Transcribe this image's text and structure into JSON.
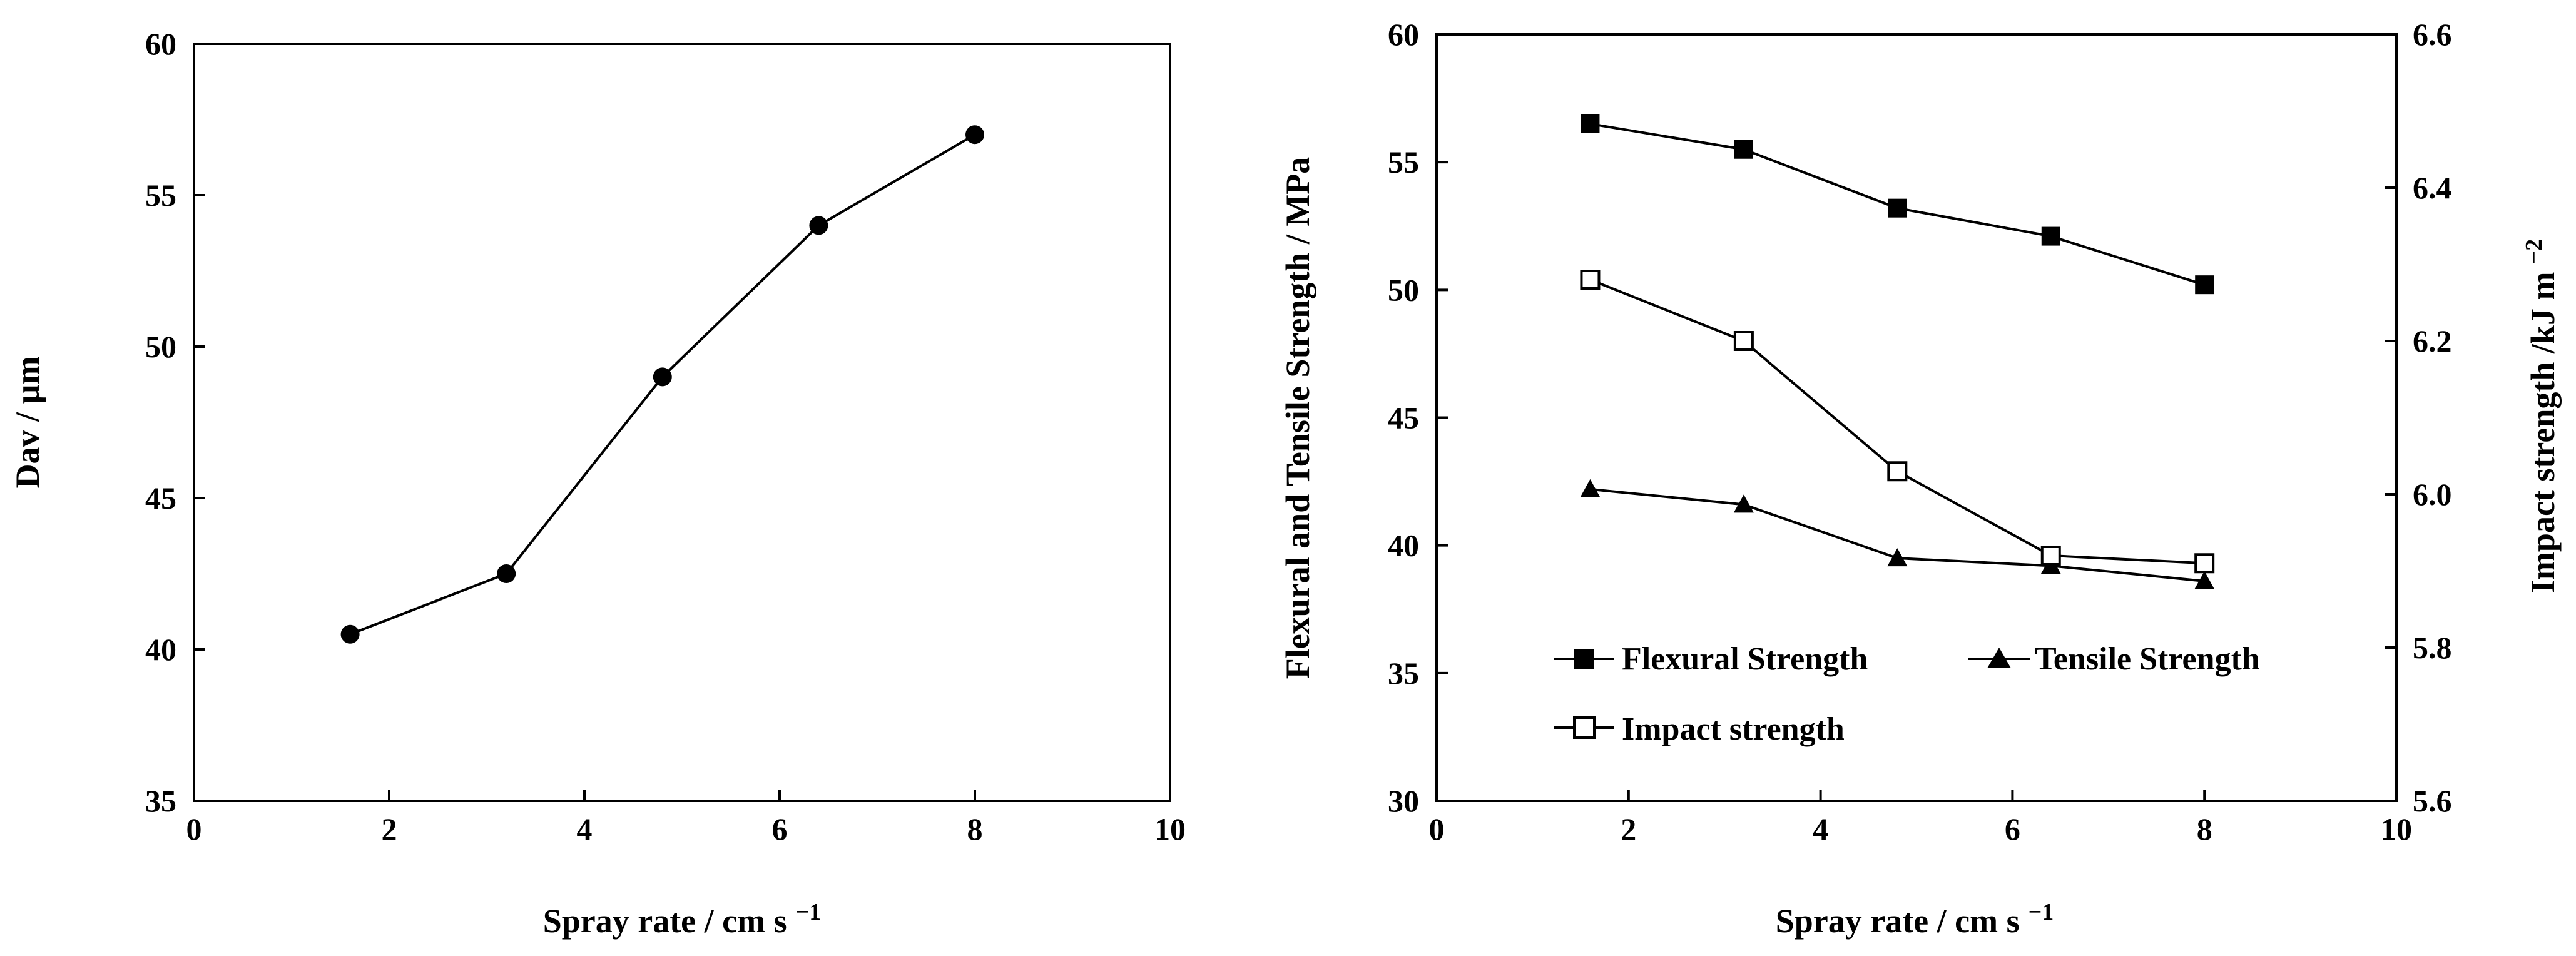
{
  "chart_data": [
    {
      "type": "line",
      "xlabel": "Spray rate / cm s",
      "xlabel_exponent": "−1",
      "ylabel": "Dav / µm",
      "xlim": [
        0,
        10
      ],
      "ylim": [
        35,
        60
      ],
      "xticks": [
        0,
        2,
        4,
        6,
        8,
        10
      ],
      "yticks": [
        35,
        40,
        45,
        50,
        55,
        60
      ],
      "x": [
        1.6,
        3.2,
        4.8,
        6.4,
        8.0
      ],
      "series": [
        {
          "name": "Dav",
          "marker": "filled-circle",
          "values": [
            40.5,
            42.5,
            49.0,
            54.0,
            57.0
          ]
        }
      ]
    },
    {
      "type": "line",
      "xlabel": "Spray rate / cm s",
      "xlabel_exponent": "−1",
      "ylabel": "Flexural and Tensile Strength / MPa",
      "y2label": "Impact strength  /kJ m",
      "y2label_exponent": "−2",
      "xlim": [
        0,
        10
      ],
      "ylim": [
        30,
        60
      ],
      "y2lim": [
        5.6,
        6.6
      ],
      "xticks": [
        0,
        2,
        4,
        6,
        8,
        10
      ],
      "yticks": [
        30,
        35,
        40,
        45,
        50,
        55,
        60
      ],
      "y2ticks": [
        "5.6",
        "5.8",
        "6.0",
        "6.2",
        "6.4",
        "6.6"
      ],
      "x": [
        1.6,
        3.2,
        4.8,
        6.4,
        8.0
      ],
      "legend_position": "bottom-left",
      "series": [
        {
          "name": "Flexural Strength",
          "axis": "left",
          "marker": "filled-square",
          "values": [
            56.5,
            55.5,
            53.2,
            52.1,
            50.2
          ]
        },
        {
          "name": "Tensile Strength",
          "axis": "left",
          "marker": "filled-triangle",
          "values": [
            42.2,
            41.6,
            39.5,
            39.2,
            38.6
          ]
        },
        {
          "name": "Impact strength",
          "axis": "right",
          "marker": "open-square",
          "values": [
            6.28,
            6.2,
            6.03,
            5.92,
            5.91
          ]
        }
      ]
    }
  ]
}
